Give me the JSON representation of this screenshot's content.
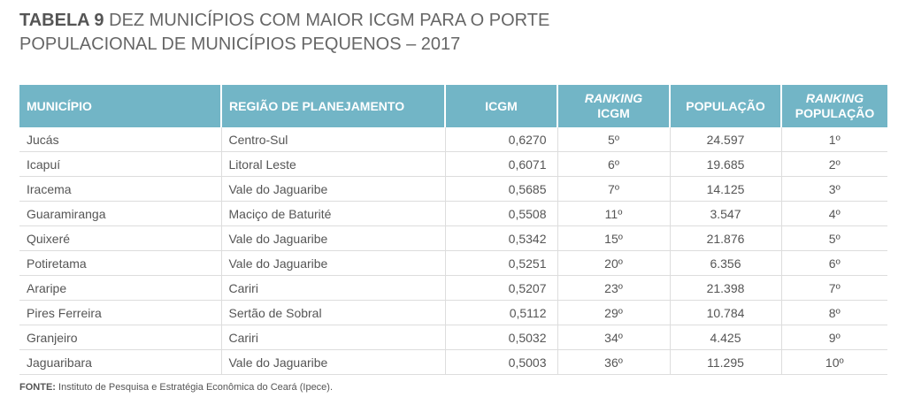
{
  "header": {
    "label": "TABELA 9",
    "title": "DEZ MUNICÍPIOS COM MAIOR ICGM PARA O PORTE POPULACIONAL DE MUNICÍPIOS PEQUENOS – 2017"
  },
  "table": {
    "columns": [
      {
        "text": "MUNICÍPIO"
      },
      {
        "text": "REGIÃO DE PLANEJAMENTO"
      },
      {
        "text": "ICGM"
      },
      {
        "em": "RANKING",
        "text": "ICGM"
      },
      {
        "text": "POPULAÇÃO"
      },
      {
        "em": "RANKING",
        "text": "POPULAÇÃO"
      }
    ],
    "rows": [
      [
        "Jucás",
        "Centro-Sul",
        "0,6270",
        "5º",
        "24.597",
        "1º"
      ],
      [
        "Icapuí",
        "Litoral Leste",
        "0,6071",
        "6º",
        "19.685",
        "2º"
      ],
      [
        "Iracema",
        "Vale do Jaguaribe",
        "0,5685",
        "7º",
        "14.125",
        "3º"
      ],
      [
        "Guaramiranga",
        "Maciço de Baturité",
        "0,5508",
        "11º",
        "3.547",
        "4º"
      ],
      [
        "Quixeré",
        "Vale do Jaguaribe",
        "0,5342",
        "15º",
        "21.876",
        "5º"
      ],
      [
        "Potiretama",
        "Vale do Jaguaribe",
        "0,5251",
        "20º",
        "6.356",
        "6º"
      ],
      [
        "Araripe",
        "Cariri",
        "0,5207",
        "23º",
        "21.398",
        "7º"
      ],
      [
        "Pires Ferreira",
        "Sertão de Sobral",
        "0,5112",
        "29º",
        "10.784",
        "8º"
      ],
      [
        "Granjeiro",
        "Cariri",
        "0,5032",
        "34º",
        "4.425",
        "9º"
      ],
      [
        "Jaguaribara",
        "Vale do Jaguaribe",
        "0,5003",
        "36º",
        "11.295",
        "10º"
      ]
    ]
  },
  "footer": {
    "label": "FONTE:",
    "text": "Instituto de Pesquisa e Estratégia Econômica do Ceará (Ipece)."
  }
}
